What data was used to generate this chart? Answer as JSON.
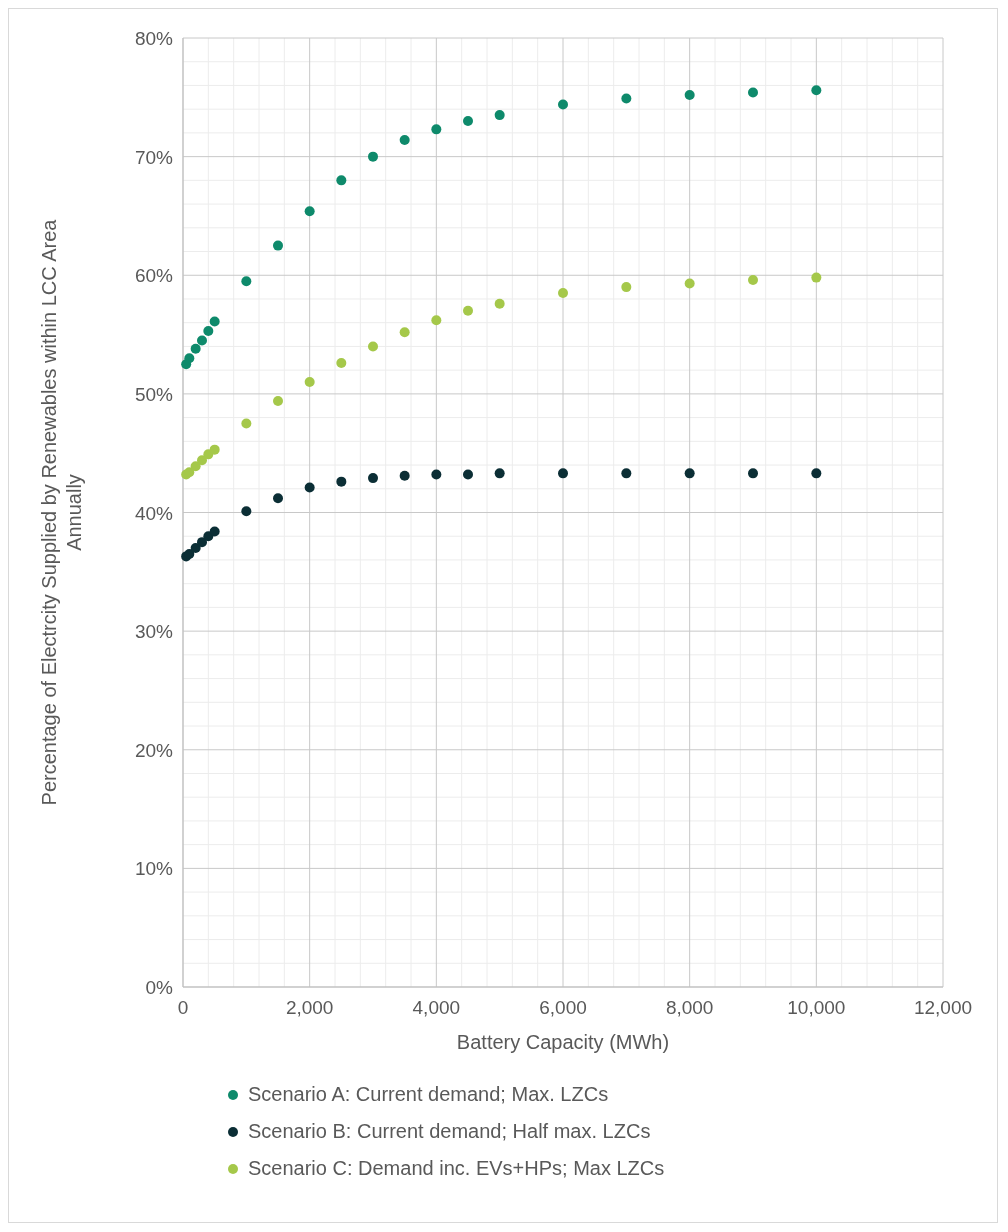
{
  "chart_data": {
    "type": "scatter",
    "xlabel": "Battery Capacity (MWh)",
    "ylabel": "Percentage of Electrcity Supplied by Renewables within LCC Area Annually",
    "x": [
      50,
      100,
      200,
      300,
      400,
      500,
      1000,
      1500,
      2000,
      2500,
      3000,
      3500,
      4000,
      4500,
      5000,
      6000,
      7000,
      8000,
      9000,
      10000
    ],
    "series": [
      {
        "name": "Scenario A: Current demand; Max. LZCs",
        "color": "#0e8a6b",
        "values": [
          0.525,
          0.53,
          0.538,
          0.545,
          0.553,
          0.561,
          0.595,
          0.625,
          0.654,
          0.68,
          0.7,
          0.714,
          0.723,
          0.73,
          0.735,
          0.744,
          0.749,
          0.752,
          0.754,
          0.756
        ]
      },
      {
        "name": "Scenario B: Current demand; Half max. LZCs",
        "color": "#0b2e35",
        "values": [
          0.363,
          0.365,
          0.37,
          0.375,
          0.38,
          0.384,
          0.401,
          0.412,
          0.421,
          0.426,
          0.429,
          0.431,
          0.432,
          0.432,
          0.433,
          0.433,
          0.433,
          0.433,
          0.433,
          0.433
        ]
      },
      {
        "name": "Scenario C: Demand inc. EVs+HPs; Max LZCs",
        "color": "#a5c84a",
        "values": [
          0.432,
          0.434,
          0.439,
          0.444,
          0.449,
          0.453,
          0.475,
          0.494,
          0.51,
          0.526,
          0.54,
          0.552,
          0.562,
          0.57,
          0.576,
          0.585,
          0.59,
          0.593,
          0.596,
          0.598
        ]
      }
    ],
    "xlim": [
      0,
      12000
    ],
    "xticks": [
      0,
      {
        "value": 2000,
        "label": "2,000"
      },
      {
        "value": 4000,
        "label": "4,000"
      },
      {
        "value": 6000,
        "label": "6,000"
      },
      {
        "value": 8000,
        "label": "8,000"
      },
      {
        "value": 10000,
        "label": "10,000"
      },
      {
        "value": 12000,
        "label": "12,000"
      }
    ],
    "ylim": [
      0,
      0.8
    ],
    "yticks": [
      {
        "value": 0,
        "label": "0%"
      },
      {
        "value": 0.1,
        "label": "10%"
      },
      {
        "value": 0.2,
        "label": "20%"
      },
      {
        "value": 0.3,
        "label": "30%"
      },
      {
        "value": 0.4,
        "label": "40%"
      },
      {
        "value": 0.5,
        "label": "50%"
      },
      {
        "value": 0.6,
        "label": "60%"
      },
      {
        "value": 0.7,
        "label": "70%"
      },
      {
        "value": 0.8,
        "label": "80%"
      }
    ],
    "grid": true,
    "legend": "bottom",
    "marker": "circle"
  }
}
